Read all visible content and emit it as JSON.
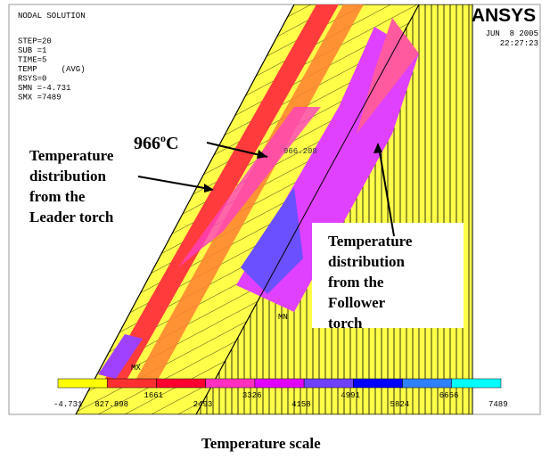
{
  "header": {
    "lines": [
      "NODAL SOLUTION",
      "STEP=20",
      "SUB =1",
      "TIME=5",
      "TEMP     (AVG)",
      "RSYS=0",
      "SMN =-4.731",
      "SMX =7489"
    ],
    "logo": "ANSYS",
    "date": "JUN  8 2005",
    "time": "22:27:23"
  },
  "annotations": {
    "peak": {
      "number": "966",
      "degree": "o",
      "unit": "C"
    },
    "node_label": "966.208",
    "leader": [
      "Temperature",
      "distribution",
      "from the",
      "Leader torch"
    ],
    "follower": [
      "Temperature",
      "distribution",
      "from the",
      "Follower",
      "torch"
    ],
    "max_marker": "MX",
    "min_marker": "MN"
  },
  "colorbar": {
    "colors": [
      "#ffff00",
      "#ff3030",
      "#ff0030",
      "#ff30c0",
      "#e000ff",
      "#7040ff",
      "#0000ff",
      "#3080ff",
      "#00ffff"
    ],
    "labels": [
      "-4.731",
      "827.898",
      "1661",
      "2493",
      "3326",
      "4158",
      "4991",
      "5824",
      "6656",
      "7489"
    ]
  },
  "caption": "Temperature scale"
}
